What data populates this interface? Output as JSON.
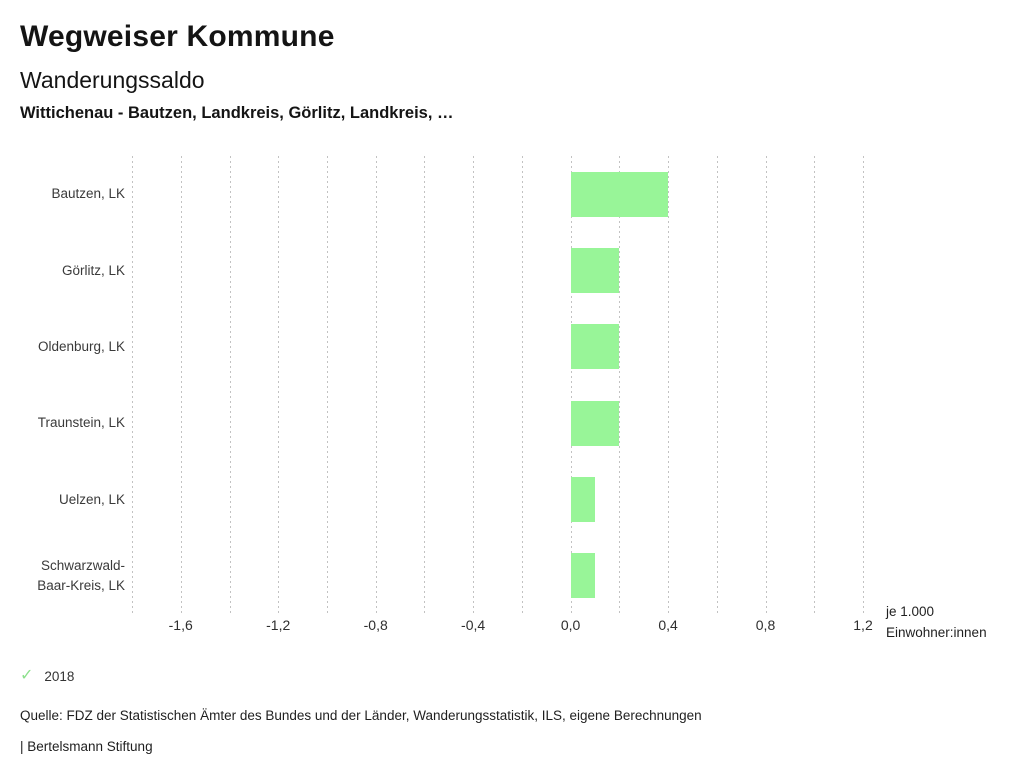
{
  "header": {
    "app_title": "Wegweiser Kommune",
    "chart_title": "Wanderungssaldo",
    "chart_subtitle": "Wittichenau - Bautzen, Landkreis, Görlitz, Landkreis, …"
  },
  "chart_data": {
    "type": "bar",
    "orientation": "horizontal",
    "title": "Wanderungssaldo",
    "subtitle": "Wittichenau - Bautzen, Landkreis, Görlitz, Landkreis, …",
    "categories": [
      "Bautzen, LK",
      "Görlitz, LK",
      "Oldenburg, LK",
      "Traunstein, LK",
      "Uelzen, LK",
      "Schwarzwald-Baar-Kreis, LK"
    ],
    "series": [
      {
        "name": "2018",
        "values": [
          0.4,
          0.2,
          0.2,
          0.2,
          0.1,
          0.1
        ]
      }
    ],
    "xlim": [
      -1.8,
      1.2
    ],
    "x_tick_step": 0.2,
    "x_ticks_labeled": [
      -1.6,
      -1.2,
      -0.8,
      -0.4,
      0.0,
      0.4,
      0.8,
      1.2
    ],
    "x_tick_labels": [
      "-1,6",
      "-1,2",
      "-0,8",
      "-0,4",
      "0,0",
      "0,4",
      "0,8",
      "1,2"
    ],
    "x_axis_unit_line1": "je 1.000",
    "x_axis_unit_line2": "Einwohner:innen",
    "xlabel": "je 1.000 Einwohner:innen",
    "ylabel": "",
    "bar_color": "#98f598",
    "gridline_color": "#c2c2c2",
    "grid": "vertical-dotted",
    "legend_position": "bottom-left"
  },
  "legend": {
    "check_icon": "✓",
    "check_color": "#8ce08c",
    "year": "2018"
  },
  "footer": {
    "source": "Quelle: FDZ der Statistischen Ämter des Bundes und der Länder, Wanderungsstatistik, ILS, eigene Berechnungen",
    "attribution": "| Bertelsmann Stiftung"
  }
}
